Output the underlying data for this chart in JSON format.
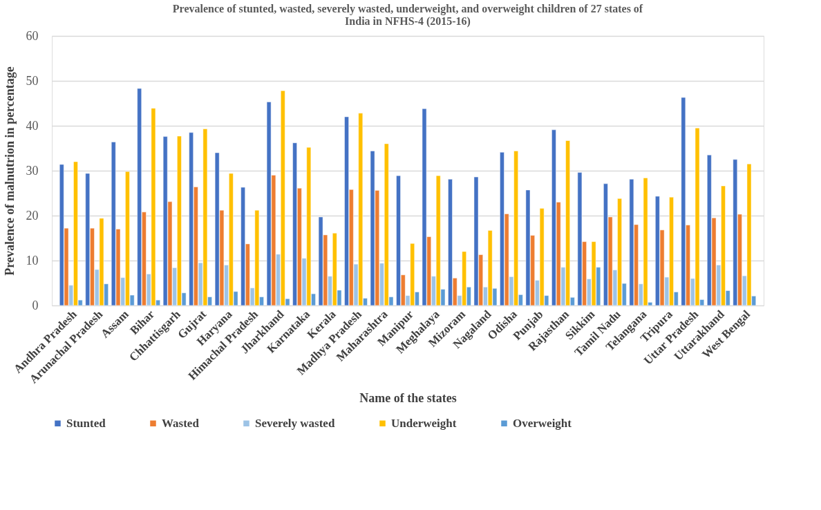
{
  "chart_data": {
    "type": "bar",
    "title": [
      "Prevalence of stunted, wasted, severely wasted, underweight, and overweight children of 27 states of",
      "India in NFHS-4 (2015-16)"
    ],
    "xlabel": "Name of the states",
    "ylabel": "Prevalence of malnutrion in percentage",
    "categories": [
      "Andhra Pradesh",
      "Arunachal Pradesh",
      "Assam",
      "Bihar",
      "Chhattisgarh",
      "Gujrat",
      "Haryana",
      "Himachal Pradesh",
      "Jharkhand",
      "Karnataka",
      "Kerala",
      "Madhya Pradesh",
      "Maharashtra",
      "Manipur",
      "Meghalaya",
      "Mizoram",
      "Nagaland",
      "Odisha",
      "Punjab",
      "Rajasthan",
      "Sikkim",
      "Tamil Nadu",
      "Telangana",
      "Tripura",
      "Uttar Pradesh",
      "Uttarakhand",
      "West Bengal"
    ],
    "series": [
      {
        "name": "Stunted",
        "color": "#4472c4",
        "values": [
          31.4,
          29.4,
          36.4,
          48.3,
          37.6,
          38.5,
          34.0,
          26.3,
          45.3,
          36.2,
          19.7,
          42.0,
          34.4,
          28.9,
          43.8,
          28.1,
          28.6,
          34.1,
          25.7,
          39.1,
          29.6,
          27.1,
          28.1,
          24.3,
          46.3,
          33.5,
          32.5
        ]
      },
      {
        "name": "Wasted",
        "color": "#ed7d31",
        "values": [
          17.2,
          17.2,
          17.0,
          20.8,
          23.1,
          26.4,
          21.2,
          13.7,
          29.0,
          26.1,
          15.7,
          25.8,
          25.6,
          6.8,
          15.3,
          6.1,
          11.3,
          20.4,
          15.6,
          23.0,
          14.2,
          19.7,
          18.0,
          16.8,
          17.9,
          19.5,
          20.3
        ]
      },
      {
        "name": "Severely wasted",
        "color": "#9dc3e6",
        "values": [
          4.5,
          8.0,
          6.2,
          7.0,
          8.4,
          9.5,
          9.0,
          3.9,
          11.4,
          10.5,
          6.5,
          9.2,
          9.4,
          2.2,
          6.5,
          2.2,
          4.1,
          6.4,
          5.6,
          8.5,
          5.9,
          7.9,
          4.8,
          6.3,
          6.0,
          9.0,
          6.6
        ]
      },
      {
        "name": "Underweight",
        "color": "#ffc000",
        "values": [
          32.0,
          19.4,
          29.8,
          43.9,
          37.7,
          39.3,
          29.4,
          21.2,
          47.8,
          35.2,
          16.1,
          42.8,
          36.0,
          13.8,
          28.9,
          12.0,
          16.7,
          34.4,
          21.6,
          36.7,
          14.2,
          23.8,
          28.4,
          24.1,
          39.5,
          26.6,
          31.5
        ]
      },
      {
        "name": "Overweight",
        "color": "#5b9bd5",
        "values": [
          1.2,
          4.8,
          2.3,
          1.2,
          2.8,
          1.9,
          3.1,
          1.9,
          1.5,
          2.6,
          3.4,
          1.6,
          1.9,
          3.0,
          3.6,
          4.1,
          3.8,
          2.4,
          2.2,
          1.8,
          8.5,
          4.9,
          0.7,
          3.0,
          1.3,
          3.3,
          2.1
        ]
      }
    ],
    "ylim": [
      0,
      60
    ],
    "yticks": [
      0,
      10,
      20,
      30,
      40,
      50,
      60
    ],
    "grid": "y",
    "legend": "bottom"
  }
}
